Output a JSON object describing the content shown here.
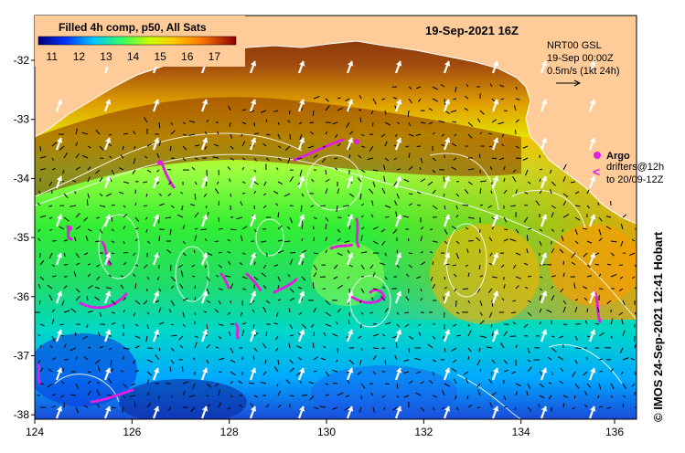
{
  "header": {
    "colorbar_title": "Filled 4h comp, p50, All Sats",
    "timestamp": "19-Sep-2021 16Z"
  },
  "colorbar": {
    "ticks": [
      "11",
      "12",
      "13",
      "14",
      "15",
      "16",
      "17"
    ],
    "min": 10.5,
    "max": 17.8
  },
  "current_legend": {
    "line1": "NRT00 GSL",
    "line2": "19-Sep 00:00Z",
    "line3": "0.5m/s (1kt 24h)"
  },
  "drifter_legend": {
    "argo_label": "Argo",
    "drifter_line1": "drifters@12h",
    "drifter_line2": "to 20/09-12Z"
  },
  "axes": {
    "x_ticks": [
      "124",
      "126",
      "128",
      "130",
      "132",
      "134",
      "136"
    ],
    "y_ticks": [
      "-32",
      "-33",
      "-34",
      "-35",
      "-36",
      "-37",
      "-38"
    ]
  },
  "credit": "©  IMOS 24-Sep-2021 12:41 Hobart",
  "colors": {
    "land": "#ffcc99",
    "drifter_track": "#e020e0",
    "vectors": "#000000",
    "contours": "#ffffff"
  }
}
